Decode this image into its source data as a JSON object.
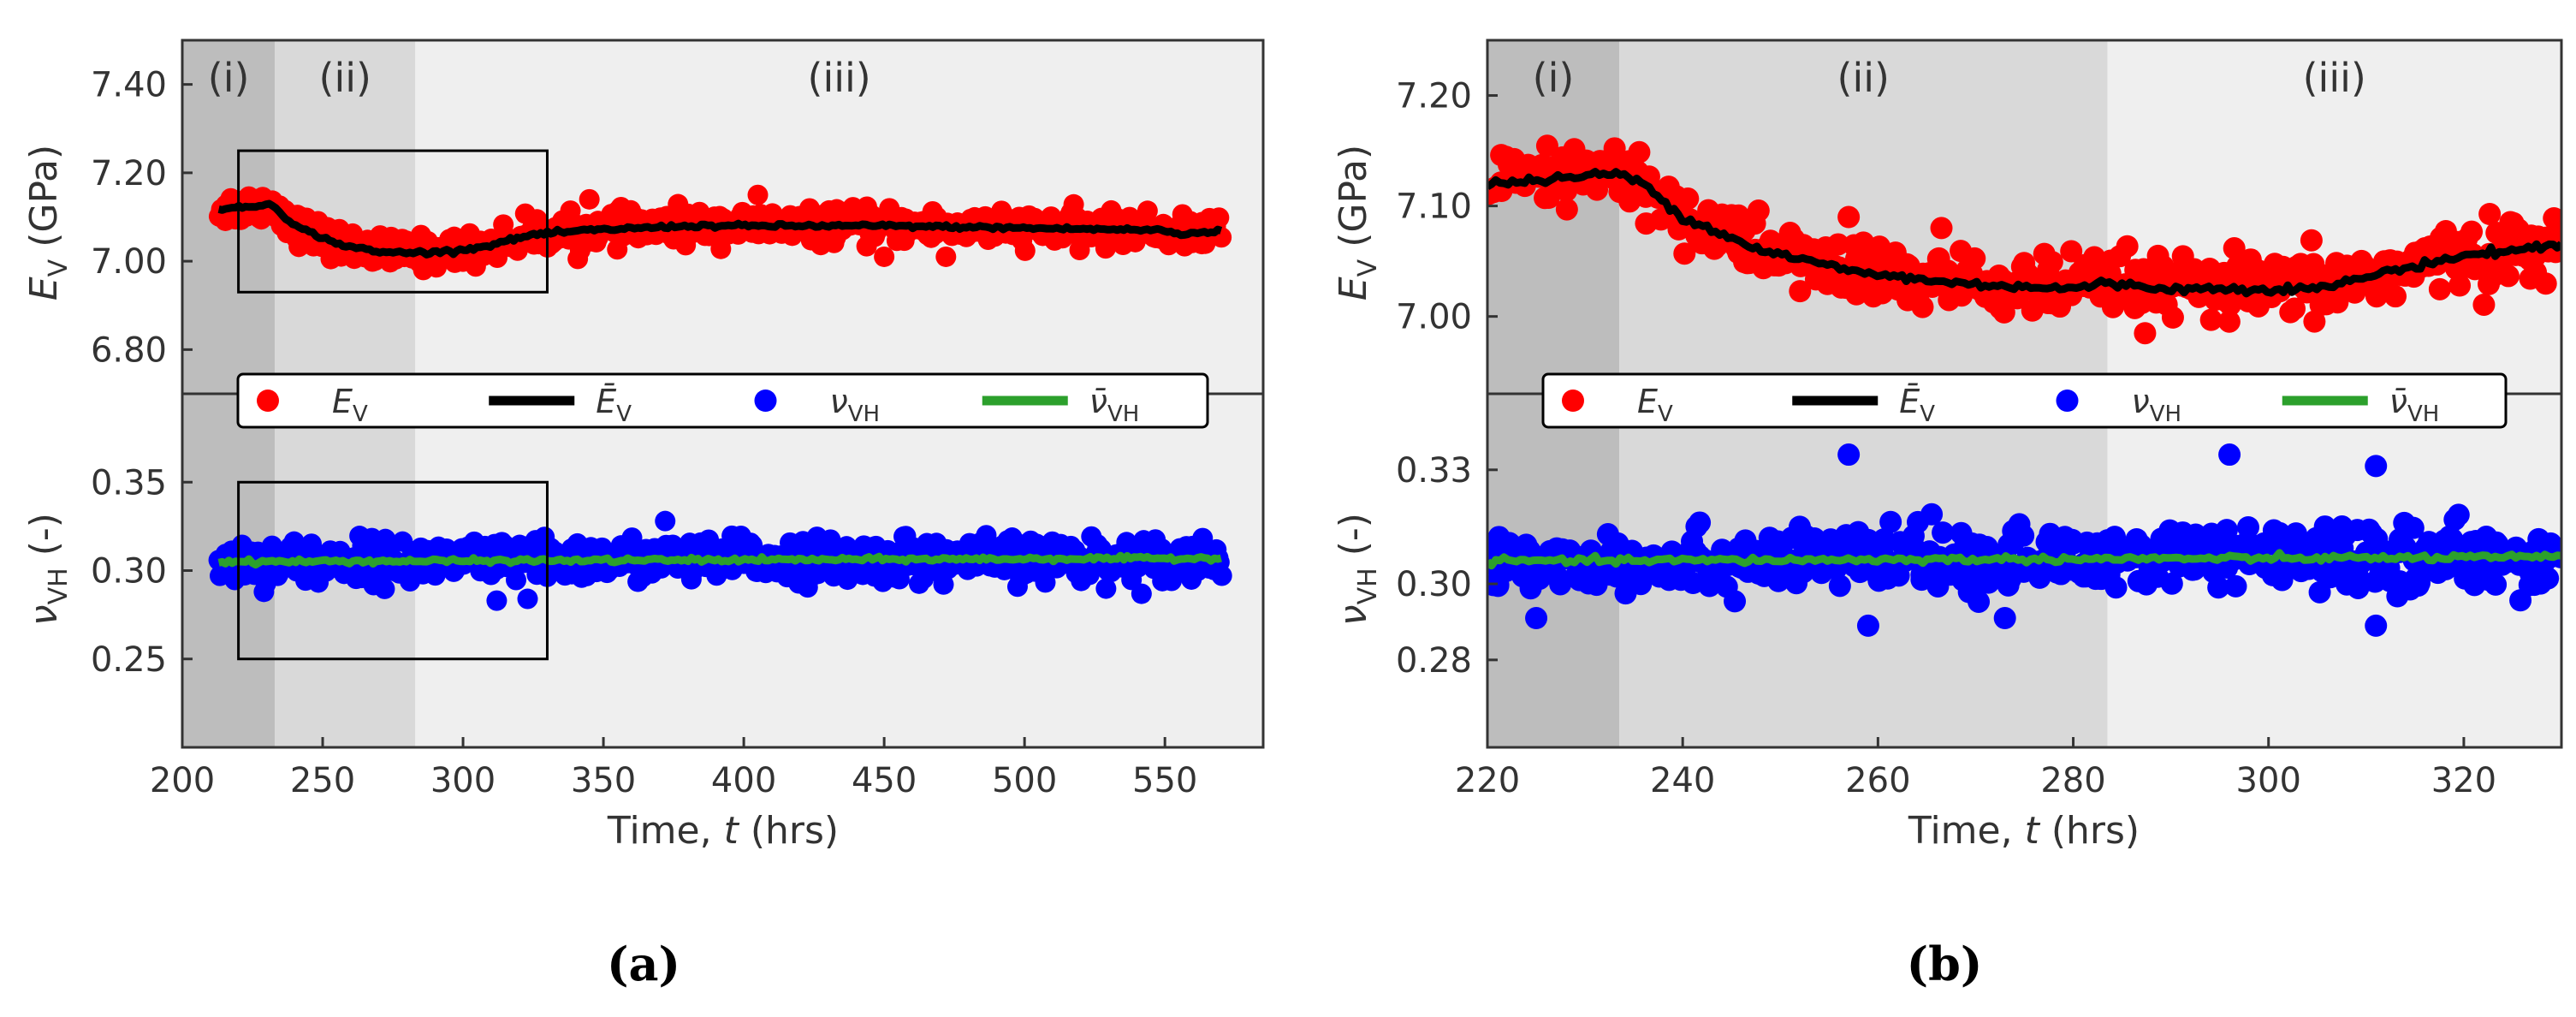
{
  "colors": {
    "region_i": "#bdbdbd",
    "region_ii": "#d9d9d9",
    "region_iii": "#efefef",
    "ev_points": "#ff0000",
    "ev_mean": "#000000",
    "nu_points": "#0000ff",
    "nu_mean": "#2ca02c"
  },
  "legend": {
    "ev": "E_V",
    "ev_mean": "Ē_V",
    "nu": "ν_VH",
    "nu_mean": "ν̄_VH"
  },
  "chart_data": [
    {
      "id": "a",
      "type": "scatter",
      "panel_label": "(a)",
      "xlabel": "Time, t (hrs)",
      "xlim": [
        200,
        585
      ],
      "xticks": [
        200,
        250,
        300,
        350,
        400,
        450,
        500,
        550
      ],
      "x_start": 213,
      "x_end": 570,
      "regions": [
        {
          "label": "(i)",
          "from": 200,
          "to": 233
        },
        {
          "label": "(ii)",
          "from": 233,
          "to": 283
        },
        {
          "label": "(iii)",
          "from": 283,
          "to": 585
        }
      ],
      "zoom_box": {
        "x": [
          220,
          330
        ],
        "ev": [
          6.93,
          7.25
        ],
        "nu": [
          0.25,
          0.35
        ]
      },
      "top": {
        "ylabel": "E_V (GPa)",
        "ylim": [
          6.7,
          7.5
        ],
        "yticks": [
          "6.80",
          "7.00",
          "7.20",
          "7.40"
        ],
        "trend": [
          [
            213,
            7.12
          ],
          [
            220,
            7.12
          ],
          [
            232,
            7.13
          ],
          [
            240,
            7.08
          ],
          [
            255,
            7.04
          ],
          [
            270,
            7.02
          ],
          [
            290,
            7.02
          ],
          [
            305,
            7.03
          ],
          [
            325,
            7.06
          ],
          [
            345,
            7.07
          ],
          [
            380,
            7.08
          ],
          [
            450,
            7.08
          ],
          [
            550,
            7.07
          ],
          [
            555,
            7.06
          ],
          [
            570,
            7.07
          ]
        ],
        "scatter_spread": 0.018,
        "outliers": [
          [
            405,
            7.15
          ],
          [
            345,
            7.14
          ],
          [
            450,
            7.01
          ],
          [
            472,
            7.01
          ]
        ]
      },
      "bottom": {
        "ylabel": "ν_VH (-)",
        "ylim": [
          0.2,
          0.4
        ],
        "yticks": [
          "0.25",
          "0.30",
          "0.35"
        ],
        "trend": [
          [
            213,
            0.305
          ],
          [
            570,
            0.307
          ]
        ],
        "scatter_spread": 0.006,
        "outliers": [
          [
            312,
            0.283
          ],
          [
            323,
            0.284
          ],
          [
            372,
            0.328
          ]
        ]
      }
    },
    {
      "id": "b",
      "type": "scatter",
      "panel_label": "(b)",
      "xlabel": "Time, t (hrs)",
      "xlim": [
        220,
        330
      ],
      "xticks": [
        220,
        240,
        260,
        280,
        300,
        320
      ],
      "x_start": 220,
      "x_end": 330,
      "regions": [
        {
          "label": "(i)",
          "from": 220,
          "to": 233.5
        },
        {
          "label": "(ii)",
          "from": 233.5,
          "to": 283.5
        },
        {
          "label": "(iii)",
          "from": 283.5,
          "to": 330
        }
      ],
      "top": {
        "ylabel": "E_V (GPa)",
        "ylim": [
          6.93,
          7.25
        ],
        "yticks": [
          "7.00",
          "7.10",
          "7.20"
        ],
        "trend": [
          [
            220,
            7.12
          ],
          [
            228,
            7.125
          ],
          [
            233,
            7.13
          ],
          [
            236,
            7.12
          ],
          [
            240,
            7.09
          ],
          [
            248,
            7.06
          ],
          [
            258,
            7.04
          ],
          [
            268,
            7.03
          ],
          [
            280,
            7.025
          ],
          [
            283,
            7.03
          ],
          [
            290,
            7.025
          ],
          [
            305,
            7.025
          ],
          [
            312,
            7.04
          ],
          [
            320,
            7.055
          ],
          [
            330,
            7.065
          ]
        ],
        "scatter_spread": 0.014,
        "outliers": [
          [
            266.5,
            7.08
          ],
          [
            257,
            7.09
          ]
        ]
      },
      "bottom": {
        "ylabel": "ν_VH (-)",
        "ylim": [
          0.257,
          0.35
        ],
        "yticks": [
          "0.28",
          "0.30",
          "0.33"
        ],
        "trend": [
          [
            220,
            0.306
          ],
          [
            330,
            0.307
          ]
        ],
        "scatter_spread": 0.004,
        "outliers": [
          [
            257,
            0.334
          ],
          [
            296,
            0.334
          ],
          [
            311,
            0.289
          ],
          [
            311,
            0.331
          ],
          [
            225,
            0.291
          ],
          [
            259,
            0.289
          ],
          [
            273,
            0.291
          ]
        ]
      }
    }
  ]
}
